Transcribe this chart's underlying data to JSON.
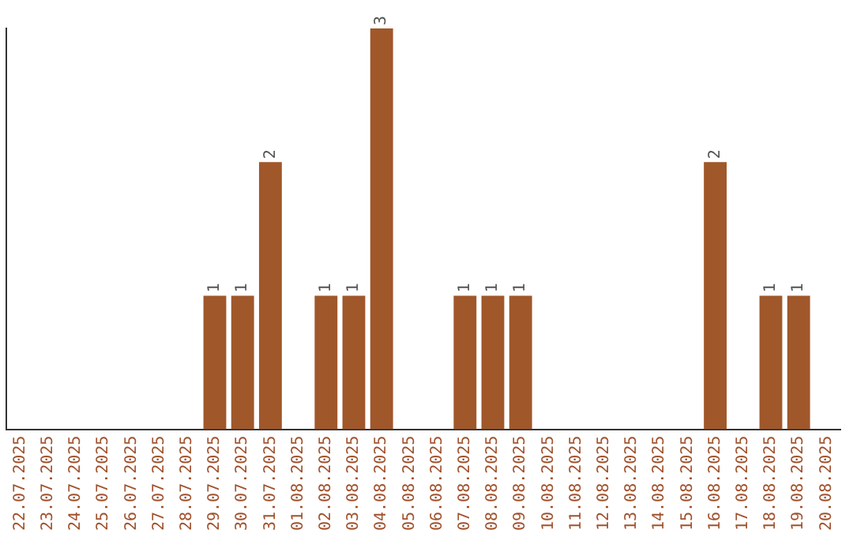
{
  "chart_data": {
    "type": "bar",
    "categories": [
      "22.07.2025",
      "23.07.2025",
      "24.07.2025",
      "25.07.2025",
      "26.07.2025",
      "27.07.2025",
      "28.07.2025",
      "29.07.2025",
      "30.07.2025",
      "31.07.2025",
      "01.08.2025",
      "02.08.2025",
      "03.08.2025",
      "04.08.2025",
      "05.08.2025",
      "06.08.2025",
      "07.08.2025",
      "08.08.2025",
      "09.08.2025",
      "10.08.2025",
      "11.08.2025",
      "12.08.2025",
      "13.08.2025",
      "14.08.2025",
      "15.08.2025",
      "16.08.2025",
      "17.08.2025",
      "18.08.2025",
      "19.08.2025",
      "20.08.2025"
    ],
    "values": [
      null,
      null,
      null,
      null,
      null,
      null,
      null,
      1,
      1,
      2,
      null,
      1,
      1,
      3,
      null,
      null,
      1,
      1,
      1,
      null,
      null,
      null,
      null,
      null,
      null,
      2,
      null,
      1,
      1,
      null
    ],
    "color": "#a0572a",
    "ylim": [
      0,
      3
    ],
    "tick_labels": "x",
    "grid": false,
    "legend": false,
    "data_labels": true
  }
}
